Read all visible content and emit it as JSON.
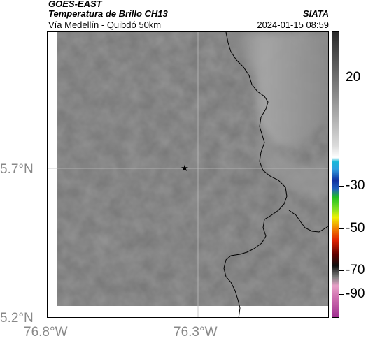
{
  "header": {
    "source": "GOES-EAST",
    "product": "Temperatura de Brillo CH13",
    "organization": "SIATA",
    "region": "Vía Medellín - Quibdó 50km",
    "datetime": "2024-01-15 08:59"
  },
  "map": {
    "lat_labels": [
      "5.7°N",
      "5.2°N"
    ],
    "lon_labels": [
      "76.8°W",
      "76.3°W"
    ],
    "marker_icon": "star-icon",
    "colors": {
      "frame": "#000000",
      "gridline": "#bdbdbd",
      "land_base": "#777777",
      "mountain_light": "#b5b5b5",
      "coastline": "#000000"
    }
  },
  "colorbar": {
    "tick_labels": [
      "20",
      "-30",
      "-50",
      "-70",
      "-90"
    ],
    "colors": {
      "warm_gray_top": "#2a2a2a",
      "warm_gray_bottom": "#dcdcdc",
      "cyan": "#18b8d8",
      "blue": "#1030a0",
      "green": "#20c020",
      "yellow": "#f0f000",
      "red": "#e02000",
      "black": "#101010",
      "pink": "#e8a0c8",
      "magenta": "#a03090"
    }
  }
}
